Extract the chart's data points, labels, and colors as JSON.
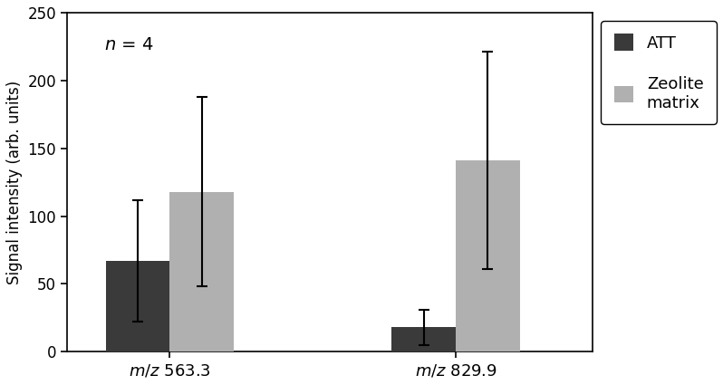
{
  "groups": [
    "m/z 563.3",
    "m/z 829.9"
  ],
  "series": [
    "ATT",
    "Zeolite matrix"
  ],
  "values": [
    [
      67,
      118
    ],
    [
      18,
      141
    ]
  ],
  "errors": [
    [
      45,
      70
    ],
    [
      13,
      80
    ]
  ],
  "bar_colors": [
    "#3a3a3a",
    "#b0b0b0"
  ],
  "bar_width": 0.28,
  "group_centers": [
    0.75,
    2.0
  ],
  "ylim": [
    0,
    250
  ],
  "yticks": [
    0,
    50,
    100,
    150,
    200,
    250
  ],
  "ylabel": "Signal intensity (arb. units)",
  "annotation": "n = 4",
  "errorbar_capsize": 4,
  "errorbar_lw": 1.5,
  "figsize": [
    7.98,
    4.25
  ],
  "dpi": 100
}
